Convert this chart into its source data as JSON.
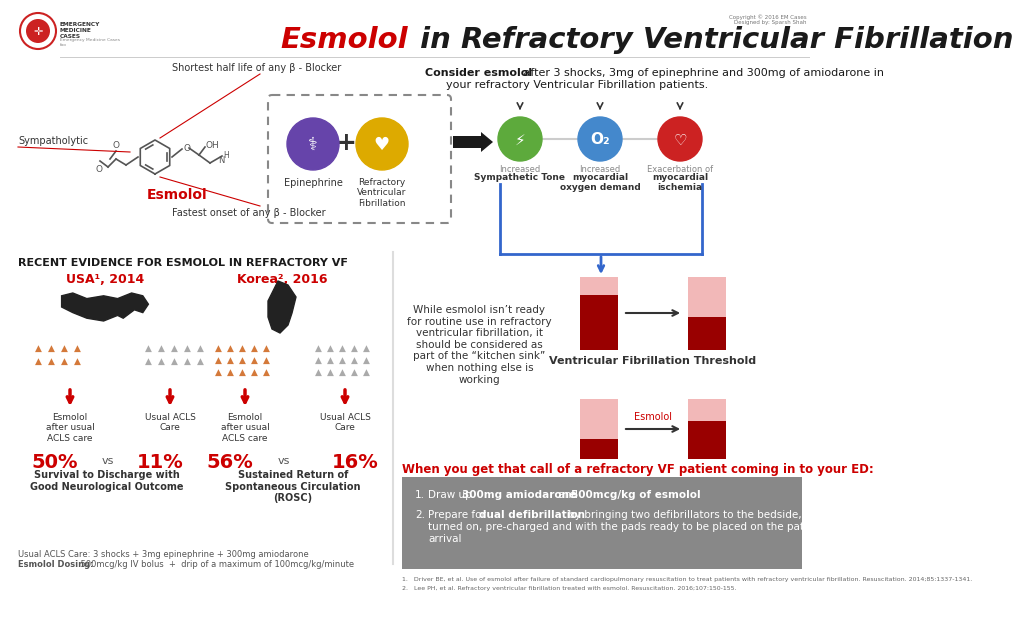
{
  "title_part1": "Esmolol",
  "title_part2": " in Refractory Ventricular Fibrillation",
  "bg_color": "#ffffff",
  "red": "#cc0000",
  "dark_red": "#990000",
  "orange_person": "#d4793a",
  "gray_person": "#aaaaaa",
  "pink_bar": "#f2b8b8",
  "dark_red_bar": "#990000",
  "green_circle": "#5daa3c",
  "blue_circle": "#4488cc",
  "red_circle": "#cc2222",
  "purple_circle": "#6644aa",
  "gold_circle": "#ddaa00",
  "gray_box": "#888888",
  "blue_bracket": "#3366cc",
  "section_title": "RECENT EVIDENCE FOR ESMOLOL IN REFRACTORY VF",
  "usa_year": "USA¹, 2014",
  "korea_year": "Korea², 2016",
  "usa_pct1": "50%",
  "usa_pct2": "11%",
  "korea_pct1": "56%",
  "korea_pct2": "16%",
  "usa_label1": "Esmolol\nafter usual\nACLS care",
  "usa_label2": "Usual ACLS\nCare",
  "korea_label1": "Esmolol\nafter usual\nACLS care",
  "korea_label2": "Usual ACLS\nCare",
  "usa_outcome": "Survival to Discharge with\nGood Neurological Outcome",
  "korea_outcome": "Sustained Return of\nSpontaneous Circulation\n(ROSC)",
  "arrow_labels": [
    "Increased\nSympathetic Tone",
    "Increased\nmyocardial\noxygen demand",
    "Exacerbation of\nmyocardial\nischemia"
  ],
  "vf_text": "While esmolol isn’t ready\nfor routine use in refractory\nventricular fibrillation, it\nshould be considered as\npart of the “kitchen sink”\nwhen nothing else is\nworking",
  "vf_threshold_label": "Ventricular Fibrillation Threshold",
  "esmolol_arrow_label": "Esmolol",
  "call_header": "When you get that call of a refractory VF patient coming in to your ED:",
  "acls_note": "Usual ACLS Care: 3 shocks + 3mg epinephrine + 300mg amiodarone",
  "dosing_note_bold": "Esmolol Dosing:",
  "dosing_note_rest": " 500mcg/kg IV bolus  +  drip of a maximum of 100mcg/kg/minute",
  "ref1": "1.   Driver BE, et al. Use of esmolol after failure of standard cardiopulmonary resuscitation to treat patients with refractory ventricular fibrillation. Resuscitation. 2014;85:1337-1341.",
  "ref2": "2.   Lee PH, et al. Refractory ventricular fibrillation treated with esmolol. Resuscitation. 2016;107:150-155.",
  "copyright": "Copyright © 2016 EM Cases\nDesigned by: Sparsh Shah",
  "anno1": "Shortest half life of any β - Blocker",
  "anno2": "Sympatholytic",
  "anno3": "Fastest onset of any β - Blocker",
  "consider_bold": "Consider esmolol",
  "consider_rest": " after 3 shocks, 3mg of epinephrine and 300mg of amiodarone in\n      your refractory Ventricular Fibrillation patients."
}
